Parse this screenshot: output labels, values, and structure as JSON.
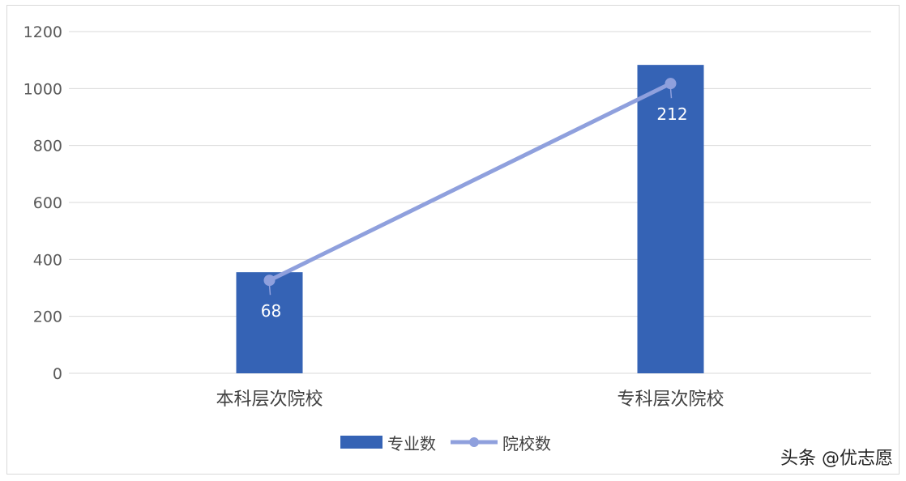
{
  "chart_data": {
    "type": "bar",
    "categories": [
      "本科层次院校",
      "专科层次院校"
    ],
    "series": [
      {
        "name": "专业数",
        "type": "bar",
        "values": [
          355,
          1083
        ],
        "color": "#3563b5",
        "axis": "primary"
      },
      {
        "name": "院校数",
        "type": "line",
        "values": [
          68,
          212
        ],
        "color": "#8fa0dd",
        "axis": "secondary",
        "data_labels": [
          "68",
          "212"
        ]
      }
    ],
    "yticks": [
      "0",
      "200",
      "400",
      "600",
      "800",
      "1000",
      "1200"
    ],
    "ylim": [
      0,
      1200
    ],
    "y2lim": [
      0,
      250
    ],
    "grid": true,
    "legend": "bottom"
  },
  "credit": "头条 @优志愿",
  "watermark": "优志愿"
}
